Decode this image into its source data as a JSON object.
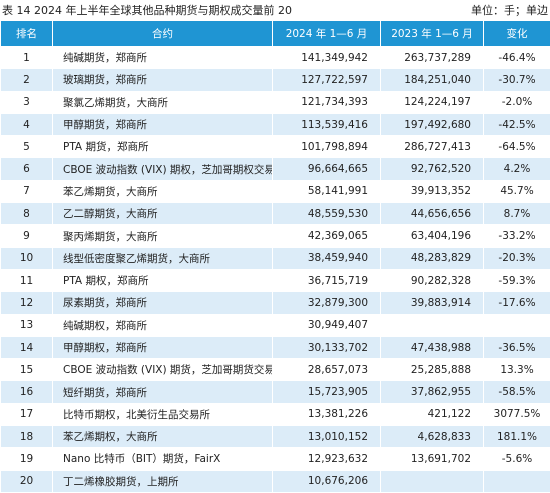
{
  "header": {
    "title": "表 14  2024 年上半年全球其他品种期货与期权成交量前 20",
    "unit": "单位：手；单边"
  },
  "table": {
    "columns": [
      "排名",
      "合约",
      "2024 年 1—6 月",
      "2023 年 1—6 月",
      "变化"
    ],
    "rows": [
      [
        "1",
        "纯碱期货，郑商所",
        "141,349,942",
        "263,737,289",
        "-46.4%"
      ],
      [
        "2",
        "玻璃期货，郑商所",
        "127,722,597",
        "184,251,040",
        "-30.7%"
      ],
      [
        "3",
        "聚氯乙烯期货，大商所",
        "121,734,393",
        "124,224,197",
        "-2.0%"
      ],
      [
        "4",
        "甲醇期货，郑商所",
        "113,539,416",
        "197,492,680",
        "-42.5%"
      ],
      [
        "5",
        "PTA 期货，郑商所",
        "101,798,894",
        "286,727,413",
        "-64.5%"
      ],
      [
        "6",
        "CBOE 波动指数 (VIX) 期权，芝加哥期权交易所",
        "96,664,665",
        "92,762,520",
        "4.2%"
      ],
      [
        "7",
        "苯乙烯期货，大商所",
        "58,141,991",
        "39,913,352",
        "45.7%"
      ],
      [
        "8",
        "乙二醇期货，大商所",
        "48,559,530",
        "44,656,656",
        "8.7%"
      ],
      [
        "9",
        "聚丙烯期货，大商所",
        "42,369,065",
        "63,404,196",
        "-33.2%"
      ],
      [
        "10",
        "线型低密度聚乙烯期货，大商所",
        "38,459,940",
        "48,283,829",
        "-20.3%"
      ],
      [
        "11",
        "PTA 期权，郑商所",
        "36,715,719",
        "90,282,328",
        "-59.3%"
      ],
      [
        "12",
        "尿素期货，郑商所",
        "32,879,300",
        "39,883,914",
        "-17.6%"
      ],
      [
        "13",
        "纯碱期权，郑商所",
        "30,949,407",
        null,
        null
      ],
      [
        "14",
        "甲醇期权，郑商所",
        "30,133,702",
        "47,438,988",
        "-36.5%"
      ],
      [
        "15",
        "CBOE 波动指数 (VIX) 期货，芝加哥期货交易所",
        "28,657,073",
        "25,285,888",
        "13.3%"
      ],
      [
        "16",
        "短纤期货，郑商所",
        "15,723,905",
        "37,862,955",
        "-58.5%"
      ],
      [
        "17",
        "比特币期权，北美衍生品交易所",
        "13,381,226",
        "421,122",
        "3077.5%"
      ],
      [
        "18",
        "苯乙烯期权，大商所",
        "13,010,152",
        "4,628,833",
        "181.1%"
      ],
      [
        "19",
        "Nano 比特币（BIT）期货，FairX",
        "12,923,632",
        "13,691,702",
        "-5.6%"
      ],
      [
        "20",
        "丁二烯橡胶期货，上期所",
        "10,676,206",
        null,
        null
      ]
    ]
  }
}
